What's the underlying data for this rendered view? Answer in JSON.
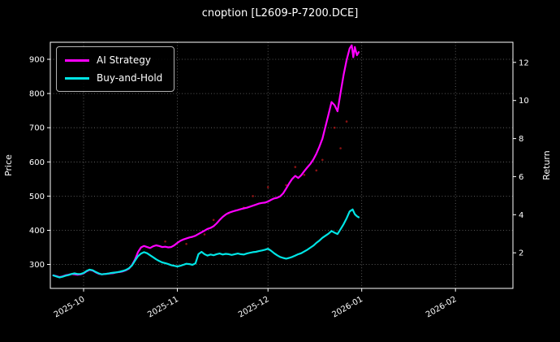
{
  "chart_data": {
    "type": "line",
    "title": "cnoption [L2609-P-7200.DCE]",
    "xlabel": "",
    "ylabel_left": "Price",
    "ylabel_right": "Return",
    "x_unit": "days since 2025-09-20",
    "xlim": [
      0,
      153
    ],
    "ylim": [
      230,
      950
    ],
    "y2lim": [
      0.13,
      13.06
    ],
    "grid": true,
    "legend_position": "upper left",
    "colors": {
      "background": "#000000",
      "foreground": "#ffffff",
      "grid": "#888888",
      "ai_strategy": "#ff00ff",
      "buy_and_hold": "#00e5e5",
      "signal_dots": "#b01818"
    },
    "xticks": [
      {
        "pos": 11,
        "label": "2025-10"
      },
      {
        "pos": 42,
        "label": "2025-11"
      },
      {
        "pos": 72,
        "label": "2025-12"
      },
      {
        "pos": 103,
        "label": "2026-01"
      },
      {
        "pos": 134,
        "label": "2026-02"
      }
    ],
    "yticks": [
      300,
      400,
      500,
      600,
      700,
      800,
      900
    ],
    "y2ticks": [
      2,
      4,
      6,
      8,
      10,
      12
    ],
    "series": [
      {
        "name": "AI Strategy",
        "color": "#ff00ff",
        "axis": "left",
        "points": [
          [
            1,
            268
          ],
          [
            2,
            266
          ],
          [
            3,
            263
          ],
          [
            4,
            265
          ],
          [
            5,
            268
          ],
          [
            6,
            270
          ],
          [
            7,
            272
          ],
          [
            8,
            271
          ],
          [
            9,
            270
          ],
          [
            10,
            271
          ],
          [
            11,
            274
          ],
          [
            12,
            280
          ],
          [
            13,
            284
          ],
          [
            14,
            282
          ],
          [
            15,
            277
          ],
          [
            16,
            273
          ],
          [
            17,
            271
          ],
          [
            18,
            272
          ],
          [
            19,
            273
          ],
          [
            20,
            274
          ],
          [
            21,
            275
          ],
          [
            22,
            277
          ],
          [
            23,
            278
          ],
          [
            24,
            280
          ],
          [
            25,
            283
          ],
          [
            26,
            288
          ],
          [
            27,
            298
          ],
          [
            28,
            314
          ],
          [
            29,
            336
          ],
          [
            30,
            350
          ],
          [
            31,
            354
          ],
          [
            32,
            351
          ],
          [
            33,
            348
          ],
          [
            34,
            353
          ],
          [
            35,
            356
          ],
          [
            36,
            354
          ],
          [
            37,
            351
          ],
          [
            38,
            352
          ],
          [
            39,
            350
          ],
          [
            40,
            351
          ],
          [
            41,
            356
          ],
          [
            42,
            363
          ],
          [
            43,
            369
          ],
          [
            44,
            373
          ],
          [
            45,
            376
          ],
          [
            46,
            379
          ],
          [
            47,
            381
          ],
          [
            48,
            384
          ],
          [
            49,
            389
          ],
          [
            50,
            394
          ],
          [
            51,
            399
          ],
          [
            52,
            404
          ],
          [
            53,
            407
          ],
          [
            54,
            412
          ],
          [
            55,
            420
          ],
          [
            56,
            430
          ],
          [
            57,
            439
          ],
          [
            58,
            446
          ],
          [
            59,
            451
          ],
          [
            60,
            454
          ],
          [
            61,
            457
          ],
          [
            62,
            459
          ],
          [
            63,
            462
          ],
          [
            64,
            464
          ],
          [
            65,
            466
          ],
          [
            66,
            469
          ],
          [
            67,
            472
          ],
          [
            68,
            475
          ],
          [
            69,
            478
          ],
          [
            70,
            480
          ],
          [
            71,
            481
          ],
          [
            72,
            484
          ],
          [
            73,
            489
          ],
          [
            74,
            493
          ],
          [
            75,
            495
          ],
          [
            76,
            499
          ],
          [
            77,
            508
          ],
          [
            78,
            522
          ],
          [
            79,
            537
          ],
          [
            80,
            550
          ],
          [
            81,
            559
          ],
          [
            82,
            553
          ],
          [
            83,
            561
          ],
          [
            84,
            573
          ],
          [
            85,
            584
          ],
          [
            86,
            594
          ],
          [
            87,
            607
          ],
          [
            88,
            624
          ],
          [
            89,
            645
          ],
          [
            90,
            668
          ],
          [
            91,
            703
          ],
          [
            92,
            738
          ],
          [
            93,
            775
          ],
          [
            94,
            766
          ],
          [
            95,
            748
          ],
          [
            96,
            802
          ],
          [
            97,
            855
          ],
          [
            98,
            898
          ],
          [
            99,
            932
          ],
          [
            99.7,
            941
          ],
          [
            100.2,
            906
          ],
          [
            100.7,
            936
          ],
          [
            101.4,
            912
          ],
          [
            102,
            921
          ]
        ]
      },
      {
        "name": "Buy-and-Hold",
        "color": "#00e5e5",
        "axis": "left",
        "points": [
          [
            1,
            268
          ],
          [
            2,
            265
          ],
          [
            3,
            262
          ],
          [
            4,
            264
          ],
          [
            5,
            267
          ],
          [
            6,
            269
          ],
          [
            7,
            272
          ],
          [
            8,
            274
          ],
          [
            9,
            272
          ],
          [
            10,
            272
          ],
          [
            11,
            275
          ],
          [
            12,
            281
          ],
          [
            13,
            285
          ],
          [
            14,
            283
          ],
          [
            15,
            278
          ],
          [
            16,
            274
          ],
          [
            17,
            271
          ],
          [
            18,
            272
          ],
          [
            19,
            273
          ],
          [
            20,
            275
          ],
          [
            21,
            276
          ],
          [
            22,
            277
          ],
          [
            23,
            279
          ],
          [
            24,
            281
          ],
          [
            25,
            284
          ],
          [
            26,
            289
          ],
          [
            27,
            297
          ],
          [
            28,
            311
          ],
          [
            29,
            324
          ],
          [
            30,
            332
          ],
          [
            31,
            336
          ],
          [
            32,
            333
          ],
          [
            33,
            327
          ],
          [
            34,
            321
          ],
          [
            35,
            315
          ],
          [
            36,
            310
          ],
          [
            37,
            306
          ],
          [
            38,
            304
          ],
          [
            39,
            301
          ],
          [
            40,
            298
          ],
          [
            41,
            296
          ],
          [
            42,
            294
          ],
          [
            43,
            296
          ],
          [
            44,
            299
          ],
          [
            45,
            302
          ],
          [
            46,
            301
          ],
          [
            47,
            299
          ],
          [
            48,
            303
          ],
          [
            49,
            330
          ],
          [
            50,
            337
          ],
          [
            51,
            330
          ],
          [
            52,
            326
          ],
          [
            53,
            329
          ],
          [
            54,
            327
          ],
          [
            55,
            330
          ],
          [
            56,
            332
          ],
          [
            57,
            329
          ],
          [
            58,
            331
          ],
          [
            59,
            330
          ],
          [
            60,
            328
          ],
          [
            61,
            330
          ],
          [
            62,
            332
          ],
          [
            63,
            330
          ],
          [
            64,
            329
          ],
          [
            65,
            332
          ],
          [
            66,
            334
          ],
          [
            67,
            336
          ],
          [
            68,
            337
          ],
          [
            69,
            339
          ],
          [
            70,
            341
          ],
          [
            71,
            343
          ],
          [
            72,
            346
          ],
          [
            73,
            340
          ],
          [
            74,
            333
          ],
          [
            75,
            327
          ],
          [
            76,
            322
          ],
          [
            77,
            319
          ],
          [
            78,
            317
          ],
          [
            79,
            319
          ],
          [
            80,
            322
          ],
          [
            81,
            326
          ],
          [
            82,
            330
          ],
          [
            83,
            333
          ],
          [
            84,
            338
          ],
          [
            85,
            343
          ],
          [
            86,
            349
          ],
          [
            87,
            355
          ],
          [
            88,
            363
          ],
          [
            89,
            370
          ],
          [
            90,
            378
          ],
          [
            91,
            384
          ],
          [
            92,
            390
          ],
          [
            93,
            398
          ],
          [
            94,
            393
          ],
          [
            95,
            389
          ],
          [
            96,
            403
          ],
          [
            97,
            418
          ],
          [
            98,
            435
          ],
          [
            99,
            455
          ],
          [
            100,
            461
          ],
          [
            100.7,
            447
          ],
          [
            101.4,
            441
          ],
          [
            102,
            438
          ]
        ]
      }
    ],
    "scatter": {
      "name": "signal-dots",
      "color": "#b01818",
      "points": [
        [
          38,
          367
        ],
        [
          45,
          360
        ],
        [
          51,
          388
        ],
        [
          54,
          430
        ],
        [
          59,
          450
        ],
        [
          64,
          466
        ],
        [
          67,
          500
        ],
        [
          72,
          526
        ],
        [
          78,
          532
        ],
        [
          81,
          585
        ],
        [
          84,
          562
        ],
        [
          88,
          575
        ],
        [
          90,
          606
        ],
        [
          94,
          700
        ],
        [
          96,
          640
        ],
        [
          98,
          718
        ]
      ]
    }
  }
}
